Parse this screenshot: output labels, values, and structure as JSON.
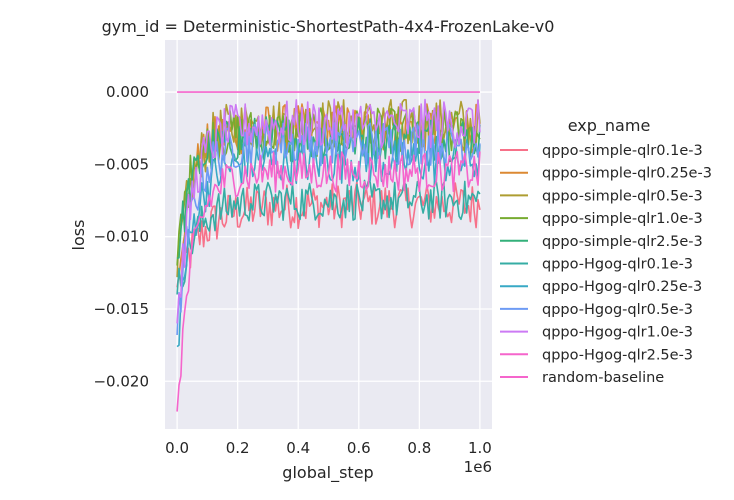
{
  "chart_data": {
    "type": "line",
    "title": "gym_id = Deterministic-ShortestPath-4x4-FrozenLake-v0",
    "xlabel": "global_step",
    "ylabel": "loss",
    "x_offset_label": "1e6",
    "xlim": [
      -0.04,
      1.04
    ],
    "ylim": [
      -0.0233,
      0.0036
    ],
    "grid": true,
    "x_ticks": [
      0.0,
      0.2,
      0.4,
      0.6,
      0.8,
      1.0
    ],
    "x_tick_labels": [
      "0.0",
      "0.2",
      "0.4",
      "0.6",
      "0.8",
      "1.0"
    ],
    "y_ticks": [
      0.0,
      -0.005,
      -0.01,
      -0.015,
      -0.02
    ],
    "y_tick_labels": [
      "0.000",
      "−0.005",
      "−0.010",
      "−0.015",
      "−0.020"
    ],
    "legend_title": "exp_name",
    "legend_position": "right",
    "colors": {
      "background": "#eaeaf2",
      "grid": "#ffffff"
    },
    "series": [
      {
        "name": "qppo-simple-qlr0.1e-3",
        "color": "#f77189",
        "start": -0.0135,
        "level": -0.0078,
        "noise": 0.0016,
        "tau": 0.08,
        "end": 1.0
      },
      {
        "name": "qppo-simple-qlr0.25e-3",
        "color": "#dc8932",
        "start": -0.0125,
        "level": -0.0025,
        "noise": 0.0017,
        "tau": 0.05,
        "end": 1.0
      },
      {
        "name": "qppo-simple-qlr0.5e-3",
        "color": "#ae9d31",
        "start": -0.0128,
        "level": -0.0022,
        "noise": 0.0018,
        "tau": 0.05,
        "end": 1.0
      },
      {
        "name": "qppo-simple-qlr1.0e-3",
        "color": "#77ab31",
        "start": -0.012,
        "level": -0.0028,
        "noise": 0.0017,
        "tau": 0.04,
        "end": 1.0
      },
      {
        "name": "qppo-simple-qlr2.5e-3",
        "color": "#33b07a",
        "start": -0.0115,
        "level": -0.0032,
        "noise": 0.0016,
        "tau": 0.05,
        "end": 1.0
      },
      {
        "name": "qppo-Hgog-qlr0.1e-3",
        "color": "#36ada4",
        "start": -0.014,
        "level": -0.0075,
        "noise": 0.0014,
        "tau": 0.06,
        "end": 1.0
      },
      {
        "name": "qppo-Hgog-qlr0.25e-3",
        "color": "#38a9c5",
        "start": -0.0176,
        "level": -0.0048,
        "noise": 0.0016,
        "tau": 0.05,
        "end": 1.0
      },
      {
        "name": "qppo-Hgog-qlr0.5e-3",
        "color": "#6e9bf4",
        "start": -0.0168,
        "level": -0.0035,
        "noise": 0.0016,
        "tau": 0.05,
        "end": 1.0
      },
      {
        "name": "qppo-Hgog-qlr1.0e-3",
        "color": "#cc7af4",
        "start": -0.016,
        "level": -0.0022,
        "noise": 0.0017,
        "tau": 0.05,
        "end": 1.0
      },
      {
        "name": "qppo-Hgog-qlr2.5e-3",
        "color": "#f565cc",
        "start": -0.0221,
        "level": -0.0055,
        "noise": 0.0014,
        "tau": 0.05,
        "end": 1.0
      },
      {
        "name": "random-baseline",
        "color": "#f565cc",
        "constant": 0.0,
        "end": 1.0
      }
    ]
  }
}
